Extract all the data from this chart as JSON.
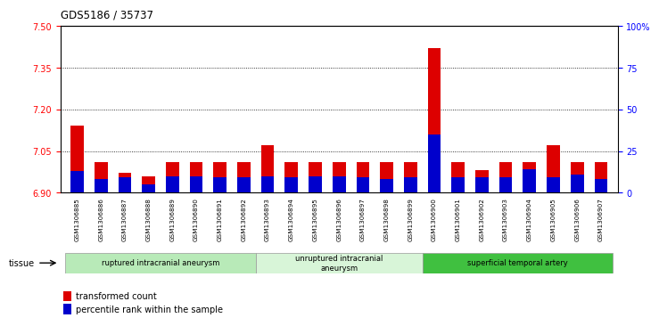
{
  "title": "GDS5186 / 35737",
  "samples": [
    "GSM1306885",
    "GSM1306886",
    "GSM1306887",
    "GSM1306888",
    "GSM1306889",
    "GSM1306890",
    "GSM1306891",
    "GSM1306892",
    "GSM1306893",
    "GSM1306894",
    "GSM1306895",
    "GSM1306896",
    "GSM1306897",
    "GSM1306898",
    "GSM1306899",
    "GSM1306900",
    "GSM1306901",
    "GSM1306902",
    "GSM1306903",
    "GSM1306904",
    "GSM1306905",
    "GSM1306906",
    "GSM1306907"
  ],
  "red_values": [
    7.14,
    7.01,
    6.97,
    6.96,
    7.01,
    7.01,
    7.01,
    7.01,
    7.07,
    7.01,
    7.01,
    7.01,
    7.01,
    7.01,
    7.01,
    7.42,
    7.01,
    6.98,
    7.01,
    7.01,
    7.07,
    7.01,
    7.01
  ],
  "blue_values_pct": [
    13,
    8,
    9,
    5,
    10,
    10,
    9,
    9,
    10,
    9,
    10,
    10,
    9,
    8,
    9,
    35,
    9,
    9,
    9,
    14,
    9,
    11,
    8
  ],
  "ylim_left": [
    6.9,
    7.5
  ],
  "ylim_right": [
    0,
    100
  ],
  "yticks_left": [
    6.9,
    7.05,
    7.2,
    7.35,
    7.5
  ],
  "yticks_right": [
    0,
    25,
    50,
    75,
    100
  ],
  "ytick_labels_right": [
    "0",
    "25",
    "50",
    "75",
    "100%"
  ],
  "groups": [
    {
      "label": "ruptured intracranial aneurysm",
      "start": 0,
      "end": 8,
      "color": "#b8eab8"
    },
    {
      "label": "unruptured intracranial\naneurysm",
      "start": 8,
      "end": 15,
      "color": "#d8f5d8"
    },
    {
      "label": "superficial temporal artery",
      "start": 15,
      "end": 23,
      "color": "#40c040"
    }
  ],
  "tissue_label": "tissue",
  "legend_red": "transformed count",
  "legend_blue": "percentile rank within the sample",
  "bar_width": 0.55,
  "red_color": "#dd0000",
  "blue_color": "#0000cc",
  "plot_bg": "#ffffff",
  "base_value": 6.9
}
